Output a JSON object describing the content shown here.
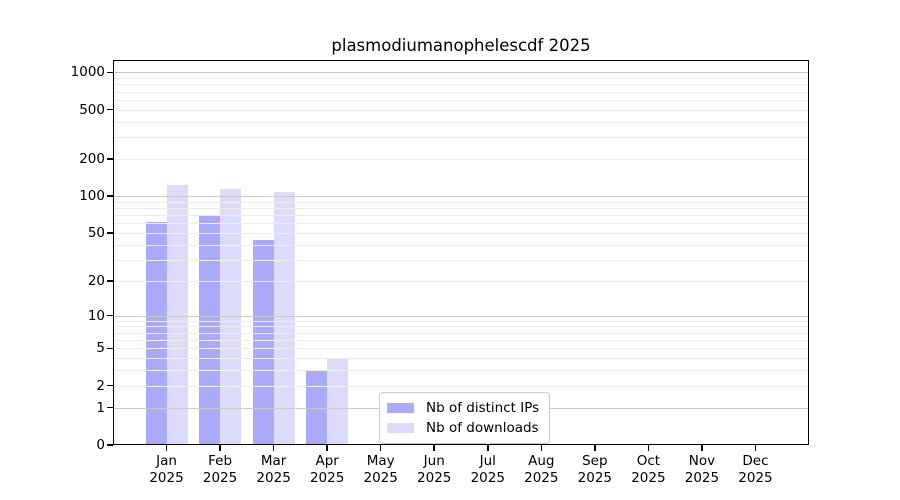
{
  "title": "plasmodiumanophelescdf 2025",
  "colors": {
    "distinct_ips": "#aaaaf8",
    "downloads": "#dcdcfa",
    "grid_major": "#c9c9c9",
    "grid_minor": "#ededed",
    "axis": "#000000",
    "text": "#000000",
    "legend_border": "#cccccc",
    "background": "#ffffff"
  },
  "chart_data": {
    "type": "bar",
    "title": "plasmodiumanophelescdf 2025",
    "scale": "log10(1+y)",
    "categories": [
      "Jan",
      "Feb",
      "Mar",
      "Apr",
      "May",
      "Jun",
      "Jul",
      "Aug",
      "Sep",
      "Oct",
      "Nov",
      "Dec"
    ],
    "year": "2025",
    "series": [
      {
        "name": "Nb of distinct IPs",
        "color_key": "distinct_ips",
        "values": [
          61,
          70,
          44,
          3,
          0,
          0,
          0,
          0,
          0,
          0,
          0,
          0
        ]
      },
      {
        "name": "Nb of downloads",
        "color_key": "downloads",
        "values": [
          123,
          115,
          108,
          4,
          0,
          0,
          0,
          0,
          0,
          0,
          0,
          0
        ]
      }
    ],
    "yticks": [
      0,
      1,
      2,
      5,
      10,
      20,
      50,
      100,
      200,
      500,
      1000
    ],
    "ymajor_gridlines": [
      1,
      10,
      100,
      1000
    ],
    "ylim_log1p": [
      0,
      3.1
    ],
    "xlabel": "",
    "ylabel": "",
    "grid": "on",
    "legend_position": "lower-center"
  }
}
